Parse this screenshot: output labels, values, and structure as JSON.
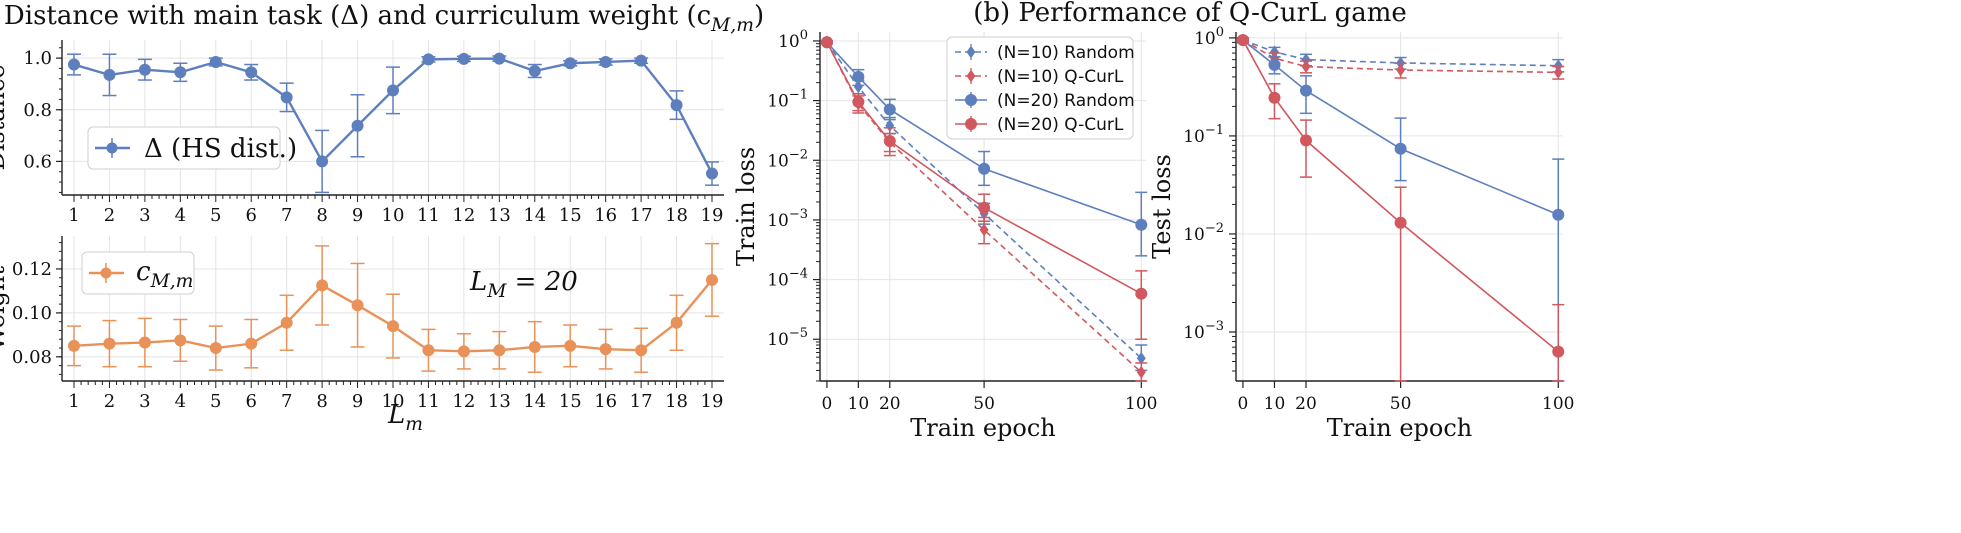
{
  "chart_data": [
    {
      "id": "distance",
      "type": "line",
      "title": "(a) Distance with main task (Δ) and curriculum weight (c",
      "title_sub": "M,m",
      "title_end": ")",
      "ylabel": "Distance",
      "x": [
        1,
        2,
        3,
        4,
        5,
        6,
        7,
        8,
        9,
        10,
        11,
        12,
        13,
        14,
        15,
        16,
        17,
        18,
        19
      ],
      "ylim": [
        0.47,
        1.07
      ],
      "yticks": [
        0.6,
        0.8,
        1.0
      ],
      "ytick_labels": [
        "0.6",
        "0.8",
        "1.0"
      ],
      "grid": true,
      "legend_position": "center-left",
      "series": [
        {
          "name": "Δ (HS dist.)",
          "color": "#5d7fbd",
          "values": [
            0.975,
            0.935,
            0.955,
            0.945,
            0.985,
            0.945,
            0.848,
            0.6,
            0.738,
            0.875,
            0.995,
            0.997,
            0.998,
            0.95,
            0.98,
            0.985,
            0.99,
            0.818,
            0.553
          ],
          "errors": [
            0.04,
            0.08,
            0.04,
            0.035,
            0.015,
            0.03,
            0.055,
            0.12,
            0.12,
            0.09,
            0.01,
            0.01,
            0.01,
            0.025,
            0.01,
            0.012,
            0.01,
            0.055,
            0.045
          ]
        }
      ]
    },
    {
      "id": "weight",
      "type": "line",
      "ylabel": "Weight",
      "xlabel": "L",
      "xlabel_sub": "m",
      "x": [
        1,
        2,
        3,
        4,
        5,
        6,
        7,
        8,
        9,
        10,
        11,
        12,
        13,
        14,
        15,
        16,
        17,
        18,
        19
      ],
      "ylim": [
        0.069,
        0.135
      ],
      "yticks": [
        0.08,
        0.1,
        0.12
      ],
      "ytick_labels": [
        "0.08",
        "0.10",
        "0.12"
      ],
      "grid": true,
      "legend_position": "top-left",
      "annotation_main": "L",
      "annotation_sub": "M",
      "annotation_rest": " = 20",
      "series": [
        {
          "name_main": "c",
          "name_sub": "M,m",
          "color": "#e8925a",
          "values": [
            0.085,
            0.086,
            0.0865,
            0.0875,
            0.084,
            0.086,
            0.0955,
            0.1125,
            0.1035,
            0.094,
            0.083,
            0.0825,
            0.083,
            0.0845,
            0.085,
            0.0835,
            0.083,
            0.0955,
            0.115
          ],
          "errors": [
            0.009,
            0.0105,
            0.011,
            0.0095,
            0.01,
            0.011,
            0.0125,
            0.018,
            0.019,
            0.0145,
            0.0095,
            0.008,
            0.0085,
            0.0115,
            0.0095,
            0.009,
            0.01,
            0.0125,
            0.0165
          ]
        }
      ]
    },
    {
      "id": "train-loss",
      "type": "line",
      "title": "(b) Performance of Q-CurL game",
      "ylabel": "Train loss",
      "xlabel": "Train epoch",
      "x": [
        0,
        10,
        20,
        50,
        100
      ],
      "xticks": [
        0,
        10,
        20,
        50,
        100
      ],
      "yscale": "log",
      "ylim_exp": [
        -5.7,
        0.15
      ],
      "ytick_exps": [
        0,
        -1,
        -2,
        -3,
        -4,
        -5
      ],
      "grid": true,
      "legend_position": "top-right",
      "series": [
        {
          "name": "(N=10) Random",
          "color": "#5d7fbd",
          "dashed": true,
          "marker": "diamond",
          "values": [
            0.95,
            0.17,
            0.038,
            0.00128,
            4.8e-06
          ],
          "lower": [
            0.9,
            0.13,
            0.028,
            0.00085,
            3e-06
          ],
          "upper": [
            1.0,
            0.22,
            0.052,
            0.0019,
            8e-06
          ]
        },
        {
          "name": "(N=10) Q-CurL",
          "color": "#d0585e",
          "dashed": true,
          "marker": "diamond",
          "values": [
            0.95,
            0.088,
            0.02,
            0.00068,
            2.8e-06
          ],
          "lower": [
            0.9,
            0.062,
            0.014,
            0.0004,
            1.9e-06
          ],
          "upper": [
            1.0,
            0.12,
            0.028,
            0.0011,
            4e-06
          ]
        },
        {
          "name": "(N=20) Random",
          "color": "#5d7fbd",
          "dashed": false,
          "marker": "circle",
          "values": [
            0.95,
            0.25,
            0.071,
            0.0072,
            0.00083
          ],
          "lower": [
            0.9,
            0.18,
            0.048,
            0.0038,
            0.00025
          ],
          "upper": [
            1.0,
            0.33,
            0.105,
            0.014,
            0.0029
          ]
        },
        {
          "name": "(N=20) Q-CurL",
          "color": "#d0585e",
          "dashed": false,
          "marker": "circle",
          "values": [
            0.95,
            0.095,
            0.021,
            0.0016,
            5.8e-05
          ],
          "lower": [
            0.9,
            0.068,
            0.012,
            0.00095,
            1e-05
          ],
          "upper": [
            1.0,
            0.13,
            0.035,
            0.0027,
            0.00014
          ]
        }
      ]
    },
    {
      "id": "test-loss",
      "type": "line",
      "ylabel": "Test loss",
      "xlabel": "Train epoch",
      "x": [
        0,
        10,
        20,
        50,
        100
      ],
      "xticks": [
        0,
        10,
        20,
        50,
        100
      ],
      "yscale": "log",
      "ylim_exp": [
        -3.5,
        0.06
      ],
      "ytick_exps": [
        0,
        -1,
        -2,
        -3
      ],
      "grid": true,
      "series": [
        {
          "name": "(N=10) Random",
          "color": "#5d7fbd",
          "dashed": true,
          "marker": "diamond",
          "values": [
            0.95,
            0.72,
            0.6,
            0.555,
            0.52
          ],
          "lower": [
            0.9,
            0.64,
            0.52,
            0.48,
            0.45
          ],
          "upper": [
            1.0,
            0.8,
            0.68,
            0.63,
            0.6
          ]
        },
        {
          "name": "(N=10) Q-CurL",
          "color": "#d0585e",
          "dashed": true,
          "marker": "diamond",
          "values": [
            0.95,
            0.62,
            0.51,
            0.47,
            0.445
          ],
          "lower": [
            0.9,
            0.55,
            0.44,
            0.39,
            0.38
          ],
          "upper": [
            1.0,
            0.7,
            0.58,
            0.55,
            0.51
          ]
        },
        {
          "name": "(N=20) Random",
          "color": "#5d7fbd",
          "dashed": false,
          "marker": "circle",
          "values": [
            0.95,
            0.53,
            0.29,
            0.074,
            0.0157
          ],
          "lower": [
            0.9,
            0.43,
            0.17,
            0.035,
            0.0003
          ],
          "upper": [
            1.0,
            0.64,
            0.41,
            0.152,
            0.058
          ]
        },
        {
          "name": "(N=20) Q-CurL",
          "color": "#d0585e",
          "dashed": false,
          "marker": "circle",
          "values": [
            0.95,
            0.245,
            0.09,
            0.013,
            0.00063
          ],
          "lower": [
            0.9,
            0.15,
            0.038,
            0.0003,
            0.0003
          ],
          "upper": [
            1.0,
            0.34,
            0.145,
            0.03,
            0.0019
          ]
        }
      ]
    }
  ]
}
